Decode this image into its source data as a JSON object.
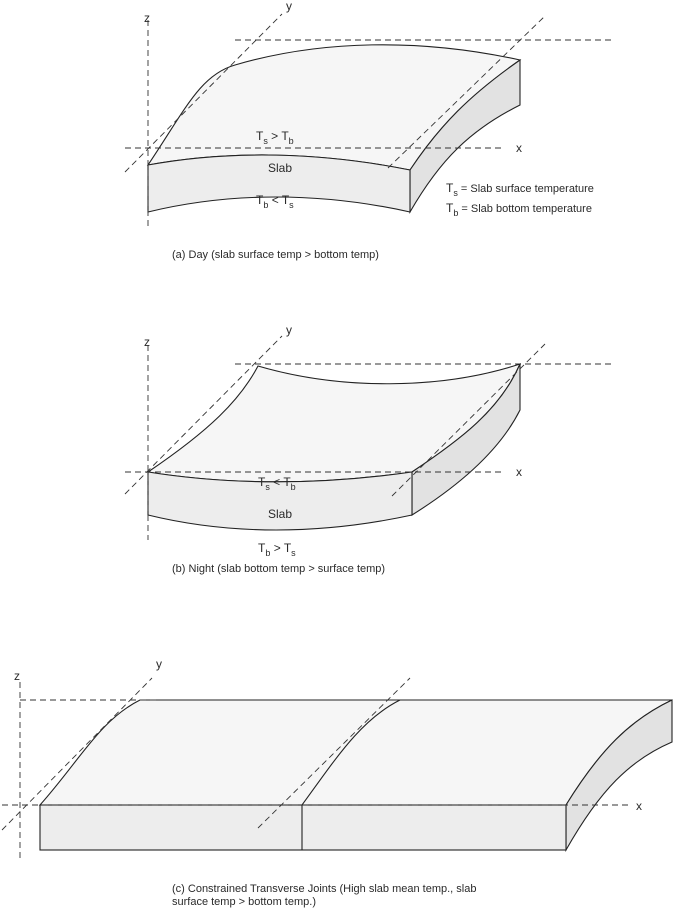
{
  "panel_a": {
    "axis_z": "z",
    "axis_y": "y",
    "axis_x": "x",
    "slab_label": "Slab",
    "top_relation": {
      "t1": "T",
      "s1": "s",
      "op": " > ",
      "t2": "T",
      "s2": "b"
    },
    "bottom_relation": {
      "t1": "T",
      "s1": "b",
      "op": " < ",
      "t2": "T",
      "s2": "s"
    },
    "legend_ts": {
      "t": "T",
      "s": "s",
      "text": " = Slab surface temperature"
    },
    "legend_tb": {
      "t": "T",
      "s": "b",
      "text": " = Slab bottom temperature"
    },
    "caption": "(a) Day (slab surface temp > bottom temp)"
  },
  "panel_b": {
    "axis_z": "z",
    "axis_y": "y",
    "axis_x": "x",
    "slab_label": "Slab",
    "top_relation": {
      "t1": "T",
      "s1": "s",
      "op": " < ",
      "t2": "T",
      "s2": "b"
    },
    "bottom_relation": {
      "t1": "T",
      "s1": "b",
      "op": " > ",
      "t2": "T",
      "s2": "s"
    },
    "caption": "(b) Night (slab bottom temp > surface temp)"
  },
  "panel_c": {
    "axis_z": "z",
    "axis_y": "y",
    "axis_x": "x",
    "caption_line1": "(c) Constrained Transverse Joints (High slab mean temp., slab",
    "caption_line2": "surface temp > bottom temp.)"
  }
}
